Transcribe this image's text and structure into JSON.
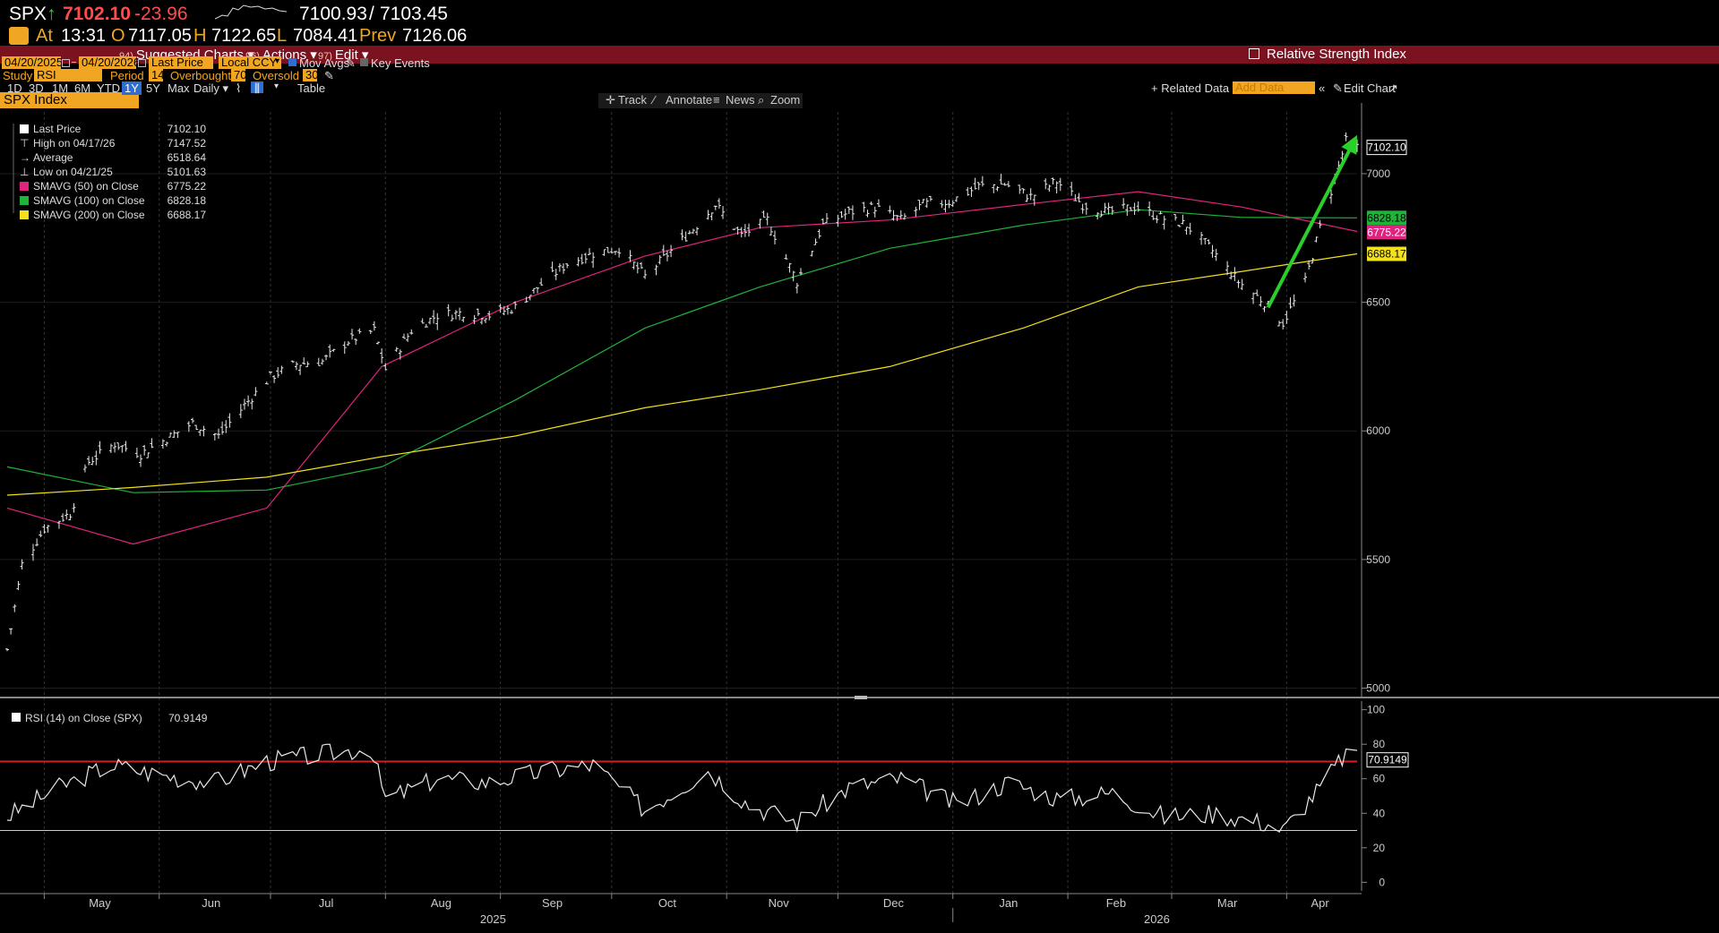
{
  "header": {
    "ticker": "SPX",
    "up_arrow": "↑",
    "last": "7102.10",
    "change": "-23.96",
    "bid": "7100.93",
    "slash": "/",
    "ask": "7103.45",
    "at_label": "At",
    "time": "13:31",
    "open_label": "O",
    "open": "7117.05",
    "high_label": "H",
    "high": "7122.65",
    "low_label": "L",
    "low": "7084.41",
    "prev_label": "Prev",
    "prev": "7126.06"
  },
  "menubar": {
    "security": "SPX Index",
    "suggested": {
      "num": "94)",
      "label": "Suggested Charts ▾"
    },
    "actions": {
      "num": "96)",
      "label": "Actions ▾"
    },
    "edit": {
      "num": "97)",
      "label": "Edit ▾"
    },
    "right_title": "Relative Strength Index"
  },
  "controls": {
    "start_date": "04/20/2025",
    "end_date": "04/20/2026",
    "price_field": "Last Price",
    "currency": "Local CCY",
    "mov_avgs": "Mov Avgs",
    "key_events": "Key Events",
    "study_label": "Study",
    "study": "RSI",
    "period_label": "Period",
    "period": "14",
    "overbought_label": "Overbought",
    "overbought": "70",
    "oversold_label": "Oversold",
    "oversold": "30",
    "ranges": [
      "1D",
      "3D",
      "1M",
      "6M",
      "YTD",
      "1Y",
      "5Y",
      "Max"
    ],
    "selected_range": "1Y",
    "frequency": "Daily ▾",
    "table": "Table",
    "related_data": "+ Related Data ▾",
    "add_data_placeholder": "Add Data",
    "edit_chart": "Edit Chart"
  },
  "toolbar": {
    "track": "Track",
    "annotate": "Annotate",
    "news": "News",
    "zoom": "Zoom"
  },
  "legend": [
    {
      "label": "Last Price",
      "value": "7102.10",
      "color": "#ffffff"
    },
    {
      "label": "High on 04/17/26",
      "value": "7147.52",
      "color": "#aaaaaa"
    },
    {
      "label": "Average",
      "value": "6518.64",
      "color": "#aaaaaa"
    },
    {
      "label": "Low on 04/21/25",
      "value": "5101.63",
      "color": "#aaaaaa"
    },
    {
      "label": "SMAVG (50)  on Close",
      "value": "6775.22",
      "color": "#e0237f"
    },
    {
      "label": "SMAVG (100)  on Close",
      "value": "6828.18",
      "color": "#1fb33a"
    },
    {
      "label": "SMAVG (200)  on Close",
      "value": "6688.17",
      "color": "#f2e11c"
    }
  ],
  "rsi_legend": {
    "label": "RSI (14)  on Close (SPX)",
    "value": "70.9149"
  },
  "chart_data": {
    "type": "line",
    "title": "Relative Strength Index",
    "x_months": [
      "May",
      "Jun",
      "Jul",
      "Aug",
      "Sep",
      "Oct",
      "Nov",
      "Dec",
      "Jan",
      "Feb",
      "Mar",
      "Apr"
    ],
    "x_years": [
      "2025",
      "2026"
    ],
    "price": {
      "y_ticks": [
        5000,
        5500,
        6000,
        6500,
        7000
      ],
      "ylim": [
        4960,
        7240
      ],
      "last": 7102.1,
      "x": [
        "2025-04-21",
        "2025-04-25",
        "2025-05-01",
        "2025-05-08",
        "2025-05-13",
        "2025-05-20",
        "2025-05-27",
        "2025-06-03",
        "2025-06-10",
        "2025-06-17",
        "2025-06-24",
        "2025-07-01",
        "2025-07-08",
        "2025-07-15",
        "2025-07-22",
        "2025-07-29",
        "2025-08-01",
        "2025-08-08",
        "2025-08-15",
        "2025-08-22",
        "2025-08-29",
        "2025-09-05",
        "2025-09-12",
        "2025-09-19",
        "2025-09-26",
        "2025-10-03",
        "2025-10-10",
        "2025-10-17",
        "2025-10-24",
        "2025-10-29",
        "2025-11-05",
        "2025-11-12",
        "2025-11-20",
        "2025-11-27",
        "2025-12-04",
        "2025-12-11",
        "2025-12-18",
        "2025-12-24",
        "2025-12-31",
        "2026-01-08",
        "2026-01-15",
        "2026-01-22",
        "2026-01-29",
        "2026-02-05",
        "2026-02-12",
        "2026-02-19",
        "2026-02-26",
        "2026-03-05",
        "2026-03-12",
        "2026-03-19",
        "2026-03-26",
        "2026-03-31",
        "2026-04-06",
        "2026-04-10",
        "2026-04-17",
        "2026-04-20"
      ],
      "y": [
        5150,
        5480,
        5620,
        5680,
        5880,
        5950,
        5910,
        5970,
        6030,
        5980,
        6100,
        6210,
        6260,
        6270,
        6350,
        6390,
        6240,
        6390,
        6450,
        6460,
        6450,
        6480,
        6570,
        6650,
        6690,
        6710,
        6600,
        6700,
        6800,
        6880,
        6760,
        6820,
        6580,
        6800,
        6850,
        6870,
        6820,
        6880,
        6890,
        6950,
        6960,
        6910,
        6970,
        6880,
        6850,
        6870,
        6830,
        6800,
        6700,
        6580,
        6500,
        6420,
        6580,
        6790,
        7125,
        7102
      ]
    },
    "series": [
      {
        "name": "SMAVG (50)  on Close",
        "color": "#e0237f",
        "x": [
          "2025-04-21",
          "2025-05-25",
          "2025-06-30",
          "2025-07-31",
          "2025-09-05",
          "2025-10-10",
          "2025-11-10",
          "2025-12-15",
          "2026-01-20",
          "2026-02-20",
          "2026-03-20",
          "2026-04-20"
        ],
        "y": [
          5700,
          5560,
          5700,
          6250,
          6500,
          6680,
          6790,
          6820,
          6880,
          6930,
          6870,
          6775.22
        ]
      },
      {
        "name": "SMAVG (100)  on Close",
        "color": "#1fb33a",
        "x": [
          "2025-04-21",
          "2025-05-25",
          "2025-06-30",
          "2025-07-31",
          "2025-09-05",
          "2025-10-10",
          "2025-11-10",
          "2025-12-15",
          "2026-01-20",
          "2026-02-20",
          "2026-03-20",
          "2026-04-20"
        ],
        "y": [
          5860,
          5760,
          5770,
          5860,
          6120,
          6400,
          6560,
          6710,
          6800,
          6860,
          6830,
          6828.18
        ]
      },
      {
        "name": "SMAVG (200)  on Close",
        "color": "#f2e11c",
        "x": [
          "2025-04-21",
          "2025-05-25",
          "2025-06-30",
          "2025-07-31",
          "2025-09-05",
          "2025-10-10",
          "2025-11-10",
          "2025-12-15",
          "2026-01-20",
          "2026-02-20",
          "2026-03-20",
          "2026-04-20"
        ],
        "y": [
          5750,
          5780,
          5820,
          5900,
          5980,
          6090,
          6160,
          6250,
          6400,
          6560,
          6620,
          6688.17
        ]
      }
    ],
    "rsi": {
      "y_ticks": [
        0,
        20,
        40,
        60,
        80,
        100
      ],
      "ylim": [
        -5,
        105
      ],
      "overbought": 70,
      "oversold": 30,
      "last": 70.9149,
      "x": [
        "2025-04-21",
        "2025-05-05",
        "2025-05-19",
        "2025-06-02",
        "2025-06-16",
        "2025-06-30",
        "2025-07-14",
        "2025-07-28",
        "2025-08-01",
        "2025-08-15",
        "2025-08-29",
        "2025-09-12",
        "2025-09-26",
        "2025-10-10",
        "2025-10-27",
        "2025-11-07",
        "2025-11-20",
        "2025-12-04",
        "2025-12-18",
        "2026-01-02",
        "2026-01-16",
        "2026-01-30",
        "2026-02-13",
        "2026-02-27",
        "2026-03-13",
        "2026-03-27",
        "2026-03-31",
        "2026-04-10",
        "2026-04-17",
        "2026-04-20"
      ],
      "y": [
        38,
        55,
        68,
        62,
        58,
        70,
        74,
        78,
        48,
        60,
        58,
        64,
        68,
        42,
        65,
        45,
        35,
        55,
        60,
        45,
        58,
        48,
        52,
        38,
        40,
        34,
        30,
        55,
        75,
        70.91
      ]
    },
    "annotations": [
      {
        "type": "arrow",
        "color": "#2ad02a",
        "from": [
          "2026-03-27",
          6480
        ],
        "to": [
          "2026-04-20",
          7150
        ]
      }
    ],
    "grid": "vertical-dashed",
    "legend_position": "top-left"
  }
}
